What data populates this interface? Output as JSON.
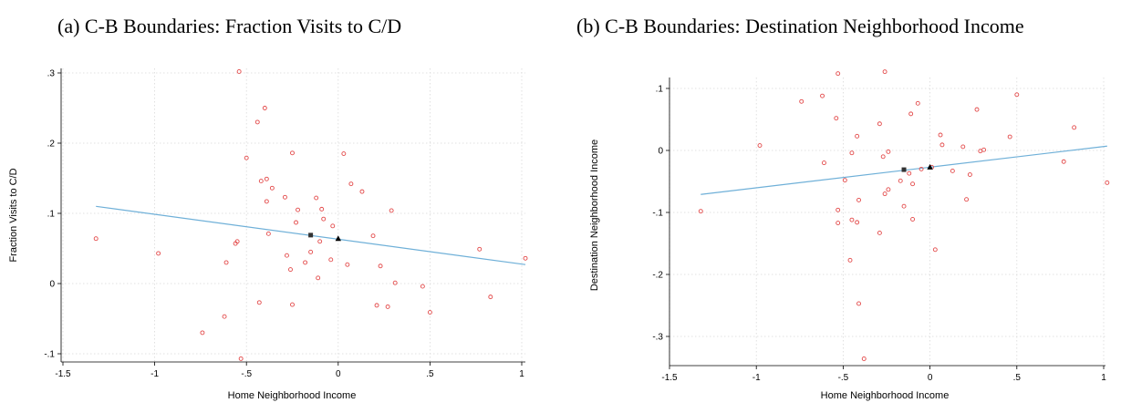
{
  "chart_data": [
    {
      "type": "scatter",
      "title": "(a) C-B Boundaries: Fraction Visits to C/D",
      "xlabel": "Home Neighborhood Income",
      "ylabel": "Fraction Visits to C/D",
      "xlim": [
        -1.5,
        1.0
      ],
      "ylim": [
        -0.1,
        0.3
      ],
      "xticks": [
        -1.5,
        -1,
        -0.5,
        0,
        0.5,
        1
      ],
      "xtick_labels": [
        "-1.5",
        "-1",
        "-.5",
        "0",
        ".5",
        "1"
      ],
      "yticks": [
        -0.1,
        0,
        0.1,
        0.2,
        0.3
      ],
      "ytick_labels": [
        "-.1",
        "0",
        ".1",
        ".2",
        ".3"
      ],
      "grid": true,
      "points": [
        [
          -1.32,
          0.064
        ],
        [
          -0.98,
          0.043
        ],
        [
          -0.74,
          -0.07
        ],
        [
          -0.62,
          -0.047
        ],
        [
          -0.61,
          0.03
        ],
        [
          -0.56,
          0.057
        ],
        [
          -0.55,
          0.06
        ],
        [
          -0.54,
          0.302
        ],
        [
          -0.53,
          -0.107
        ],
        [
          -0.5,
          0.179
        ],
        [
          -0.44,
          0.23
        ],
        [
          -0.43,
          -0.027
        ],
        [
          -0.42,
          0.146
        ],
        [
          -0.4,
          0.25
        ],
        [
          -0.39,
          0.149
        ],
        [
          -0.39,
          0.117
        ],
        [
          -0.38,
          0.071
        ],
        [
          -0.36,
          0.136
        ],
        [
          -0.29,
          0.123
        ],
        [
          -0.28,
          0.04
        ],
        [
          -0.26,
          0.02
        ],
        [
          -0.25,
          0.186
        ],
        [
          -0.25,
          -0.03
        ],
        [
          -0.23,
          0.087
        ],
        [
          -0.22,
          0.105
        ],
        [
          -0.18,
          0.03
        ],
        [
          -0.15,
          0.045
        ],
        [
          -0.12,
          0.122
        ],
        [
          -0.11,
          0.008
        ],
        [
          -0.1,
          0.06
        ],
        [
          -0.09,
          0.106
        ],
        [
          -0.08,
          0.092
        ],
        [
          -0.04,
          0.034
        ],
        [
          -0.03,
          0.082
        ],
        [
          0.03,
          0.185
        ],
        [
          0.05,
          0.027
        ],
        [
          0.07,
          0.142
        ],
        [
          0.13,
          0.131
        ],
        [
          0.19,
          0.068
        ],
        [
          0.21,
          -0.031
        ],
        [
          0.23,
          0.025
        ],
        [
          0.27,
          -0.033
        ],
        [
          0.29,
          0.104
        ],
        [
          0.31,
          0.001
        ],
        [
          0.46,
          -0.004
        ],
        [
          0.5,
          -0.041
        ],
        [
          0.77,
          0.049
        ],
        [
          0.83,
          -0.019
        ],
        [
          1.02,
          0.036
        ]
      ],
      "fit_line": [
        [
          -1.32,
          0.11
        ],
        [
          1.02,
          0.027
        ]
      ],
      "markers": [
        {
          "name": "square",
          "x": -0.15,
          "y": 0.069
        },
        {
          "name": "triangle",
          "x": 0.0,
          "y": 0.064
        }
      ]
    },
    {
      "type": "scatter",
      "title": "(b) C-B Boundaries: Destination Neighborhood Income",
      "xlabel": "Home Neighborhood Income",
      "ylabel": "Destination Neighborhood Income",
      "xlim": [
        -1.5,
        1.0
      ],
      "ylim": [
        -0.34,
        0.13
      ],
      "xticks": [
        -1.5,
        -1,
        -0.5,
        0,
        0.5,
        1
      ],
      "xtick_labels": [
        "-1.5",
        "-1",
        "-.5",
        "0",
        ".5",
        "1"
      ],
      "yticks": [
        -0.3,
        -0.2,
        -0.1,
        0,
        0.1
      ],
      "ytick_labels": [
        "-.3",
        "-.2",
        "-.1",
        "0",
        ".1"
      ],
      "grid": true,
      "points": [
        [
          -1.32,
          -0.098
        ],
        [
          -0.98,
          0.008
        ],
        [
          -0.74,
          0.079
        ],
        [
          -0.62,
          0.088
        ],
        [
          -0.61,
          -0.02
        ],
        [
          -0.54,
          0.052
        ],
        [
          -0.53,
          0.124
        ],
        [
          -0.53,
          -0.096
        ],
        [
          -0.53,
          -0.117
        ],
        [
          -0.49,
          -0.048
        ],
        [
          -0.46,
          -0.177
        ],
        [
          -0.45,
          -0.004
        ],
        [
          -0.45,
          -0.112
        ],
        [
          -0.42,
          0.023
        ],
        [
          -0.42,
          -0.116
        ],
        [
          -0.41,
          -0.247
        ],
        [
          -0.41,
          -0.08
        ],
        [
          -0.38,
          -0.336
        ],
        [
          -0.29,
          0.043
        ],
        [
          -0.29,
          -0.133
        ],
        [
          -0.27,
          -0.01
        ],
        [
          -0.26,
          0.127
        ],
        [
          -0.26,
          -0.07
        ],
        [
          -0.24,
          -0.063
        ],
        [
          -0.24,
          -0.002
        ],
        [
          -0.17,
          -0.049
        ],
        [
          -0.15,
          -0.09
        ],
        [
          -0.12,
          -0.037
        ],
        [
          -0.11,
          0.059
        ],
        [
          -0.1,
          -0.054
        ],
        [
          -0.1,
          -0.111
        ],
        [
          -0.07,
          0.076
        ],
        [
          -0.05,
          -0.03
        ],
        [
          0.01,
          -0.027
        ],
        [
          0.03,
          -0.16
        ],
        [
          0.06,
          0.025
        ],
        [
          0.07,
          0.009
        ],
        [
          0.13,
          -0.033
        ],
        [
          0.19,
          0.006
        ],
        [
          0.21,
          -0.079
        ],
        [
          0.23,
          -0.039
        ],
        [
          0.27,
          0.066
        ],
        [
          0.29,
          -0.001
        ],
        [
          0.31,
          0.001
        ],
        [
          0.46,
          0.022
        ],
        [
          0.5,
          0.09
        ],
        [
          0.77,
          -0.018
        ],
        [
          0.83,
          0.037
        ],
        [
          1.02,
          -0.052
        ]
      ],
      "fit_line": [
        [
          -1.32,
          -0.071
        ],
        [
          1.02,
          0.007
        ]
      ],
      "markers": [
        {
          "name": "square",
          "x": -0.15,
          "y": -0.031
        },
        {
          "name": "triangle",
          "x": 0.0,
          "y": -0.027
        }
      ]
    }
  ]
}
